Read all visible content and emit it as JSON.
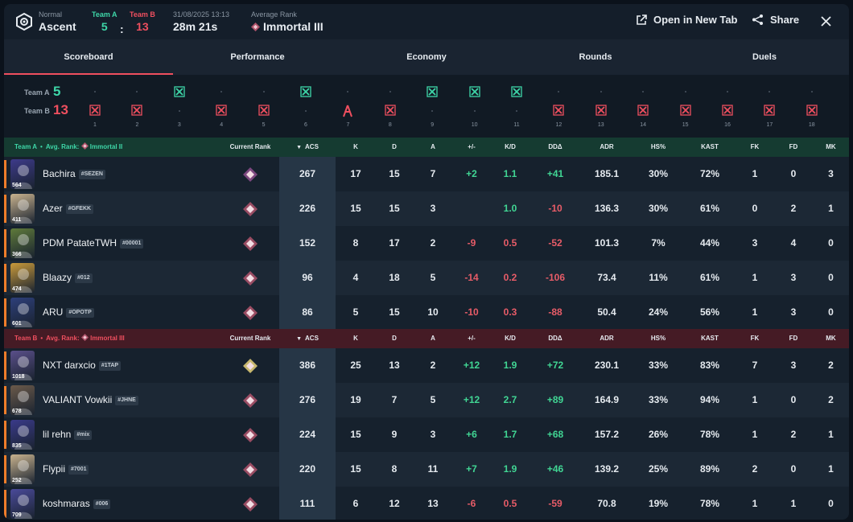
{
  "header": {
    "mode": "Normal",
    "map": "Ascent",
    "team_a_label": "Team A",
    "team_a_score": "5",
    "colon": ":",
    "team_b_label": "Team B",
    "team_b_score": "13",
    "date": "31/08/2025 13:13",
    "duration": "28m 21s",
    "avg_rank_label": "Average Rank",
    "avg_rank": "Immortal III",
    "open_tab": "Open in New Tab",
    "share": "Share"
  },
  "tabs": [
    "Scoreboard",
    "Performance",
    "Economy",
    "Rounds",
    "Duels"
  ],
  "timeline": {
    "team_a_label": "Team A",
    "team_a_score": "5",
    "team_b_label": "Team B",
    "team_b_score": "13",
    "rounds": [
      {
        "num": "1",
        "winner": "B",
        "icon": "elimination-icon"
      },
      {
        "num": "2",
        "winner": "B",
        "icon": "elimination-icon"
      },
      {
        "num": "3",
        "winner": "A",
        "icon": "elimination-icon"
      },
      {
        "num": "4",
        "winner": "B",
        "icon": "elimination-icon"
      },
      {
        "num": "5",
        "winner": "B",
        "icon": "elimination-icon"
      },
      {
        "num": "6",
        "winner": "A",
        "icon": "elimination-icon"
      },
      {
        "num": "7",
        "winner": "B",
        "icon": "spike-defuse-icon"
      },
      {
        "num": "8",
        "winner": "B",
        "icon": "elimination-icon"
      },
      {
        "num": "9",
        "winner": "A",
        "icon": "elimination-icon"
      },
      {
        "num": "10",
        "winner": "A",
        "icon": "elimination-icon"
      },
      {
        "num": "11",
        "winner": "A",
        "icon": "elimination-icon"
      },
      {
        "num": "12",
        "winner": "B",
        "icon": "elimination-icon"
      },
      {
        "num": "13",
        "winner": "B",
        "icon": "elimination-icon"
      },
      {
        "num": "14",
        "winner": "B",
        "icon": "elimination-icon"
      },
      {
        "num": "15",
        "winner": "B",
        "icon": "elimination-icon"
      },
      {
        "num": "16",
        "winner": "B",
        "icon": "elimination-icon"
      },
      {
        "num": "17",
        "winner": "B",
        "icon": "elimination-icon"
      },
      {
        "num": "18",
        "winner": "B",
        "icon": "elimination-icon"
      }
    ]
  },
  "columns": [
    "Current Rank",
    "ACS",
    "K",
    "D",
    "A",
    "+/-",
    "K/D",
    "DDΔ",
    "ADR",
    "HS%",
    "KAST",
    "FK",
    "FD",
    "MK"
  ],
  "team_a": {
    "name": "Team A",
    "dot": "•",
    "avg_label": "Avg. Rank:",
    "avg_rank": "Immortal II",
    "players": [
      {
        "name": "Bachira",
        "tag": "#SEZEN",
        "level": "564",
        "agent_color": "#3d3a8a",
        "rank_color": "#8e4f8e",
        "acs": "267",
        "k": "17",
        "d": "15",
        "a": "7",
        "pm": "+2",
        "kd": "1.1",
        "dd": "+41",
        "adr": "185.1",
        "hs": "30%",
        "kast": "72%",
        "fk": "1",
        "fd": "0",
        "mk": "3"
      },
      {
        "name": "Azer",
        "tag": "#GFEKK",
        "level": "411",
        "agent_color": "#c9b38e",
        "rank_color": "#b0546c",
        "acs": "226",
        "k": "15",
        "d": "15",
        "a": "3",
        "pm": "",
        "kd": "1.0",
        "dd": "-10",
        "adr": "136.3",
        "hs": "30%",
        "kast": "61%",
        "fk": "0",
        "fd": "2",
        "mk": "1"
      },
      {
        "name": "PDM PatateTWH",
        "tag": "#00001",
        "level": "366",
        "agent_color": "#5f7a3a",
        "rank_color": "#b0546c",
        "acs": "152",
        "k": "8",
        "d": "17",
        "a": "2",
        "pm": "-9",
        "kd": "0.5",
        "dd": "-52",
        "adr": "101.3",
        "hs": "7%",
        "kast": "44%",
        "fk": "3",
        "fd": "4",
        "mk": "0"
      },
      {
        "name": "Blaazy",
        "tag": "#012",
        "level": "474",
        "agent_color": "#c99a3a",
        "rank_color": "#b0546c",
        "acs": "96",
        "k": "4",
        "d": "18",
        "a": "5",
        "pm": "-14",
        "kd": "0.2",
        "dd": "-106",
        "adr": "73.4",
        "hs": "11%",
        "kast": "61%",
        "fk": "1",
        "fd": "3",
        "mk": "0"
      },
      {
        "name": "ARU",
        "tag": "#OPOTP",
        "level": "601",
        "agent_color": "#2d3f7a",
        "rank_color": "#b0546c",
        "acs": "86",
        "k": "5",
        "d": "15",
        "a": "10",
        "pm": "-10",
        "kd": "0.3",
        "dd": "-88",
        "adr": "50.4",
        "hs": "24%",
        "kast": "56%",
        "fk": "1",
        "fd": "3",
        "mk": "0"
      }
    ]
  },
  "team_b": {
    "name": "Team B",
    "dot": "•",
    "avg_label": "Avg. Rank:",
    "avg_rank": "Immortal III",
    "players": [
      {
        "name": "NXT darxcio",
        "tag": "#1TAP",
        "level": "1018",
        "agent_color": "#5a4f8a",
        "rank_color": "#e8d27a",
        "acs": "386",
        "k": "25",
        "d": "13",
        "a": "2",
        "pm": "+12",
        "kd": "1.9",
        "dd": "+72",
        "adr": "230.1",
        "hs": "33%",
        "kast": "83%",
        "fk": "7",
        "fd": "3",
        "mk": "2"
      },
      {
        "name": "VALIANT Vowkii",
        "tag": "#JHNE",
        "level": "678",
        "agent_color": "#6b5a4a",
        "rank_color": "#b0546c",
        "acs": "276",
        "k": "19",
        "d": "7",
        "a": "5",
        "pm": "+12",
        "kd": "2.7",
        "dd": "+89",
        "adr": "164.9",
        "hs": "33%",
        "kast": "94%",
        "fk": "1",
        "fd": "0",
        "mk": "2"
      },
      {
        "name": "lil rehn",
        "tag": "#mix",
        "level": "835",
        "agent_color": "#3a3a8a",
        "rank_color": "#b0546c",
        "acs": "224",
        "k": "15",
        "d": "9",
        "a": "3",
        "pm": "+6",
        "kd": "1.7",
        "dd": "+68",
        "adr": "157.2",
        "hs": "26%",
        "kast": "78%",
        "fk": "1",
        "fd": "2",
        "mk": "1"
      },
      {
        "name": "Flypii",
        "tag": "#7001",
        "level": "252",
        "agent_color": "#c9b38e",
        "rank_color": "#b0546c",
        "acs": "220",
        "k": "15",
        "d": "8",
        "a": "11",
        "pm": "+7",
        "kd": "1.9",
        "dd": "+46",
        "adr": "139.2",
        "hs": "25%",
        "kast": "89%",
        "fk": "2",
        "fd": "0",
        "mk": "1"
      },
      {
        "name": "koshmaras",
        "tag": "#006",
        "level": "709",
        "agent_color": "#4a4a9a",
        "rank_color": "#b0546c",
        "acs": "111",
        "k": "6",
        "d": "12",
        "a": "13",
        "pm": "-6",
        "kd": "0.5",
        "dd": "-59",
        "adr": "70.8",
        "hs": "19%",
        "kast": "78%",
        "fk": "1",
        "fd": "1",
        "mk": "0"
      }
    ]
  },
  "colors": {
    "team_a": "#3ed7a8",
    "team_b": "#ef4f5f",
    "positive": "#41d694",
    "negative": "#e85c68",
    "highlight": "#ee7d2a"
  }
}
